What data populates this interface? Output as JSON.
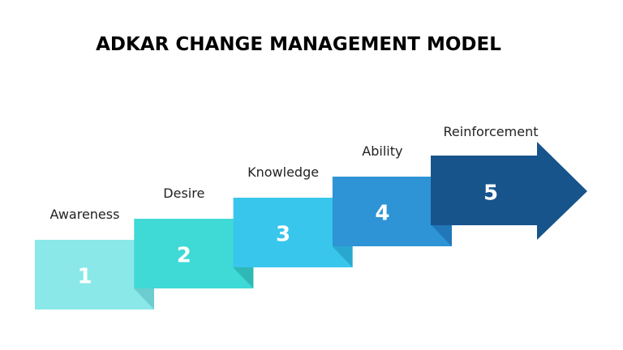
{
  "title": "ADKAR CHANGE MANAGEMENT MODEL",
  "steps": [
    {
      "number": 1,
      "label": "Awareness"
    },
    {
      "number": 2,
      "label": "Desire"
    },
    {
      "number": 3,
      "label": "Knowledge"
    },
    {
      "number": 4,
      "label": "Ability"
    },
    {
      "number": 5,
      "label": "Reinforcement"
    }
  ]
}
